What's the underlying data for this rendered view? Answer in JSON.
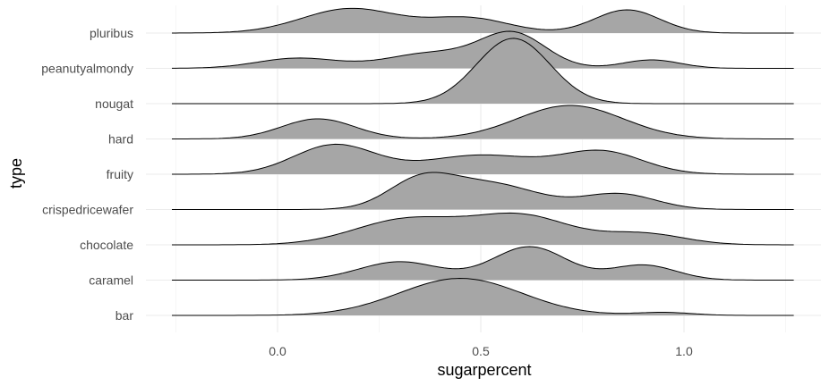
{
  "chart_data": {
    "type": "ridgeline",
    "xlabel": "sugarpercent",
    "ylabel": "type",
    "xlim": [
      -0.27,
      1.27
    ],
    "x_ticks": [
      0.0,
      0.5,
      1.0
    ],
    "x_tick_labels": [
      "0.0",
      "0.5",
      "1.0"
    ],
    "minor_x_ticks": [
      -0.25,
      0.25,
      0.75,
      1.25
    ],
    "density_range": [
      -0.26,
      1.27
    ],
    "fill_color": "#a6a6a6",
    "line_color": "#000000",
    "grid": true,
    "series": [
      {
        "name": "bar",
        "peak": 1.05,
        "components": [
          [
            0.45,
            0.15,
            1.0
          ],
          [
            0.95,
            0.07,
            0.08
          ]
        ]
      },
      {
        "name": "caramel",
        "peak": 0.95,
        "components": [
          [
            0.3,
            0.1,
            0.55
          ],
          [
            0.62,
            0.09,
            1.0
          ],
          [
            0.9,
            0.08,
            0.45
          ]
        ]
      },
      {
        "name": "chocolate",
        "peak": 0.9,
        "components": [
          [
            0.32,
            0.13,
            0.8
          ],
          [
            0.6,
            0.12,
            0.9
          ],
          [
            0.9,
            0.1,
            0.35
          ]
        ]
      },
      {
        "name": "crispedricewafer",
        "peak": 1.05,
        "components": [
          [
            0.35,
            0.08,
            0.75
          ],
          [
            0.52,
            0.12,
            0.75
          ],
          [
            0.84,
            0.09,
            0.45
          ]
        ]
      },
      {
        "name": "fruity",
        "peak": 0.85,
        "components": [
          [
            0.14,
            0.1,
            1.0
          ],
          [
            0.5,
            0.14,
            0.65
          ],
          [
            0.8,
            0.1,
            0.75
          ]
        ]
      },
      {
        "name": "hard",
        "peak": 0.95,
        "components": [
          [
            0.1,
            0.09,
            0.6
          ],
          [
            0.72,
            0.13,
            1.0
          ]
        ]
      },
      {
        "name": "nougat",
        "peak": 1.85,
        "components": [
          [
            0.58,
            0.09,
            1.0
          ]
        ]
      },
      {
        "name": "peanutyalmondy",
        "peak": 1.05,
        "components": [
          [
            0.05,
            0.1,
            0.3
          ],
          [
            0.38,
            0.11,
            0.45
          ],
          [
            0.58,
            0.08,
            1.0
          ],
          [
            0.92,
            0.07,
            0.25
          ]
        ]
      },
      {
        "name": "pluribus",
        "peak": 0.7,
        "components": [
          [
            0.18,
            0.12,
            1.0
          ],
          [
            0.47,
            0.1,
            0.6
          ],
          [
            0.86,
            0.08,
            0.95
          ]
        ]
      }
    ]
  }
}
